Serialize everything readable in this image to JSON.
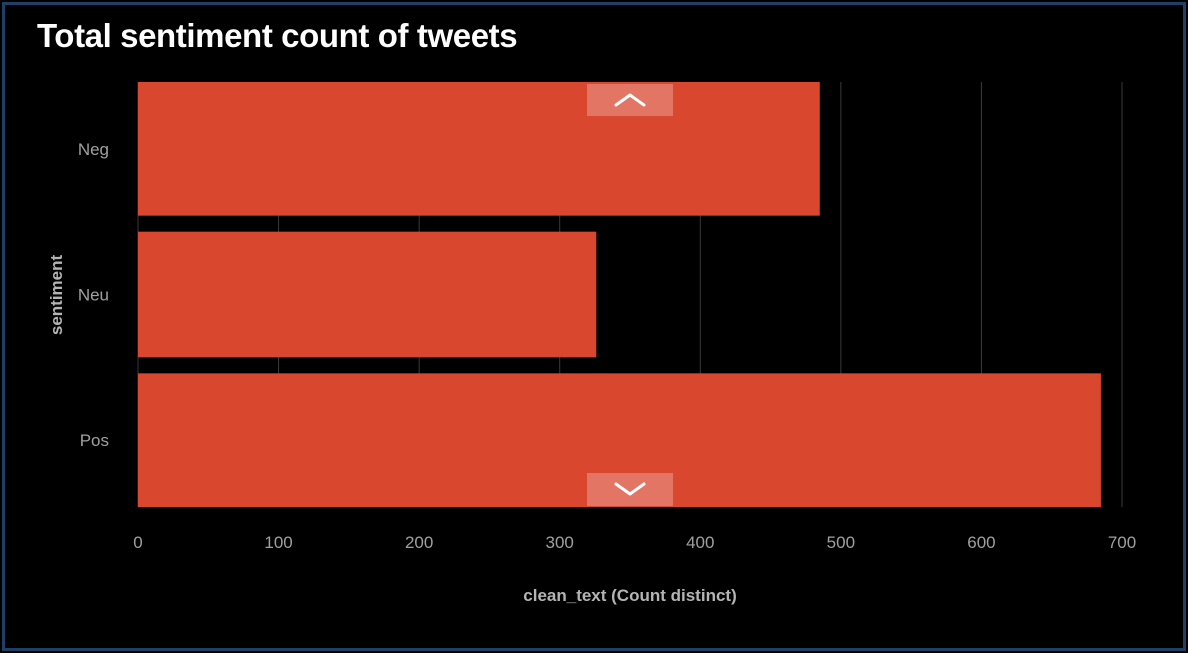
{
  "title": "Total sentiment count of tweets",
  "chart_data": {
    "type": "bar",
    "orientation": "horizontal",
    "categories": [
      "Neg",
      "Neu",
      "Pos"
    ],
    "values": [
      485,
      326,
      685
    ],
    "xlabel": "clean_text (Count distinct)",
    "ylabel": "sentiment",
    "xlim": [
      0,
      700
    ],
    "xticks": [
      "0",
      "100",
      "200",
      "300",
      "400",
      "500",
      "600",
      "700"
    ],
    "grid": true,
    "bar_color": "#d9472f"
  },
  "controls": {
    "scroll_up_icon": "chevron-up-icon",
    "scroll_down_icon": "chevron-down-icon"
  }
}
